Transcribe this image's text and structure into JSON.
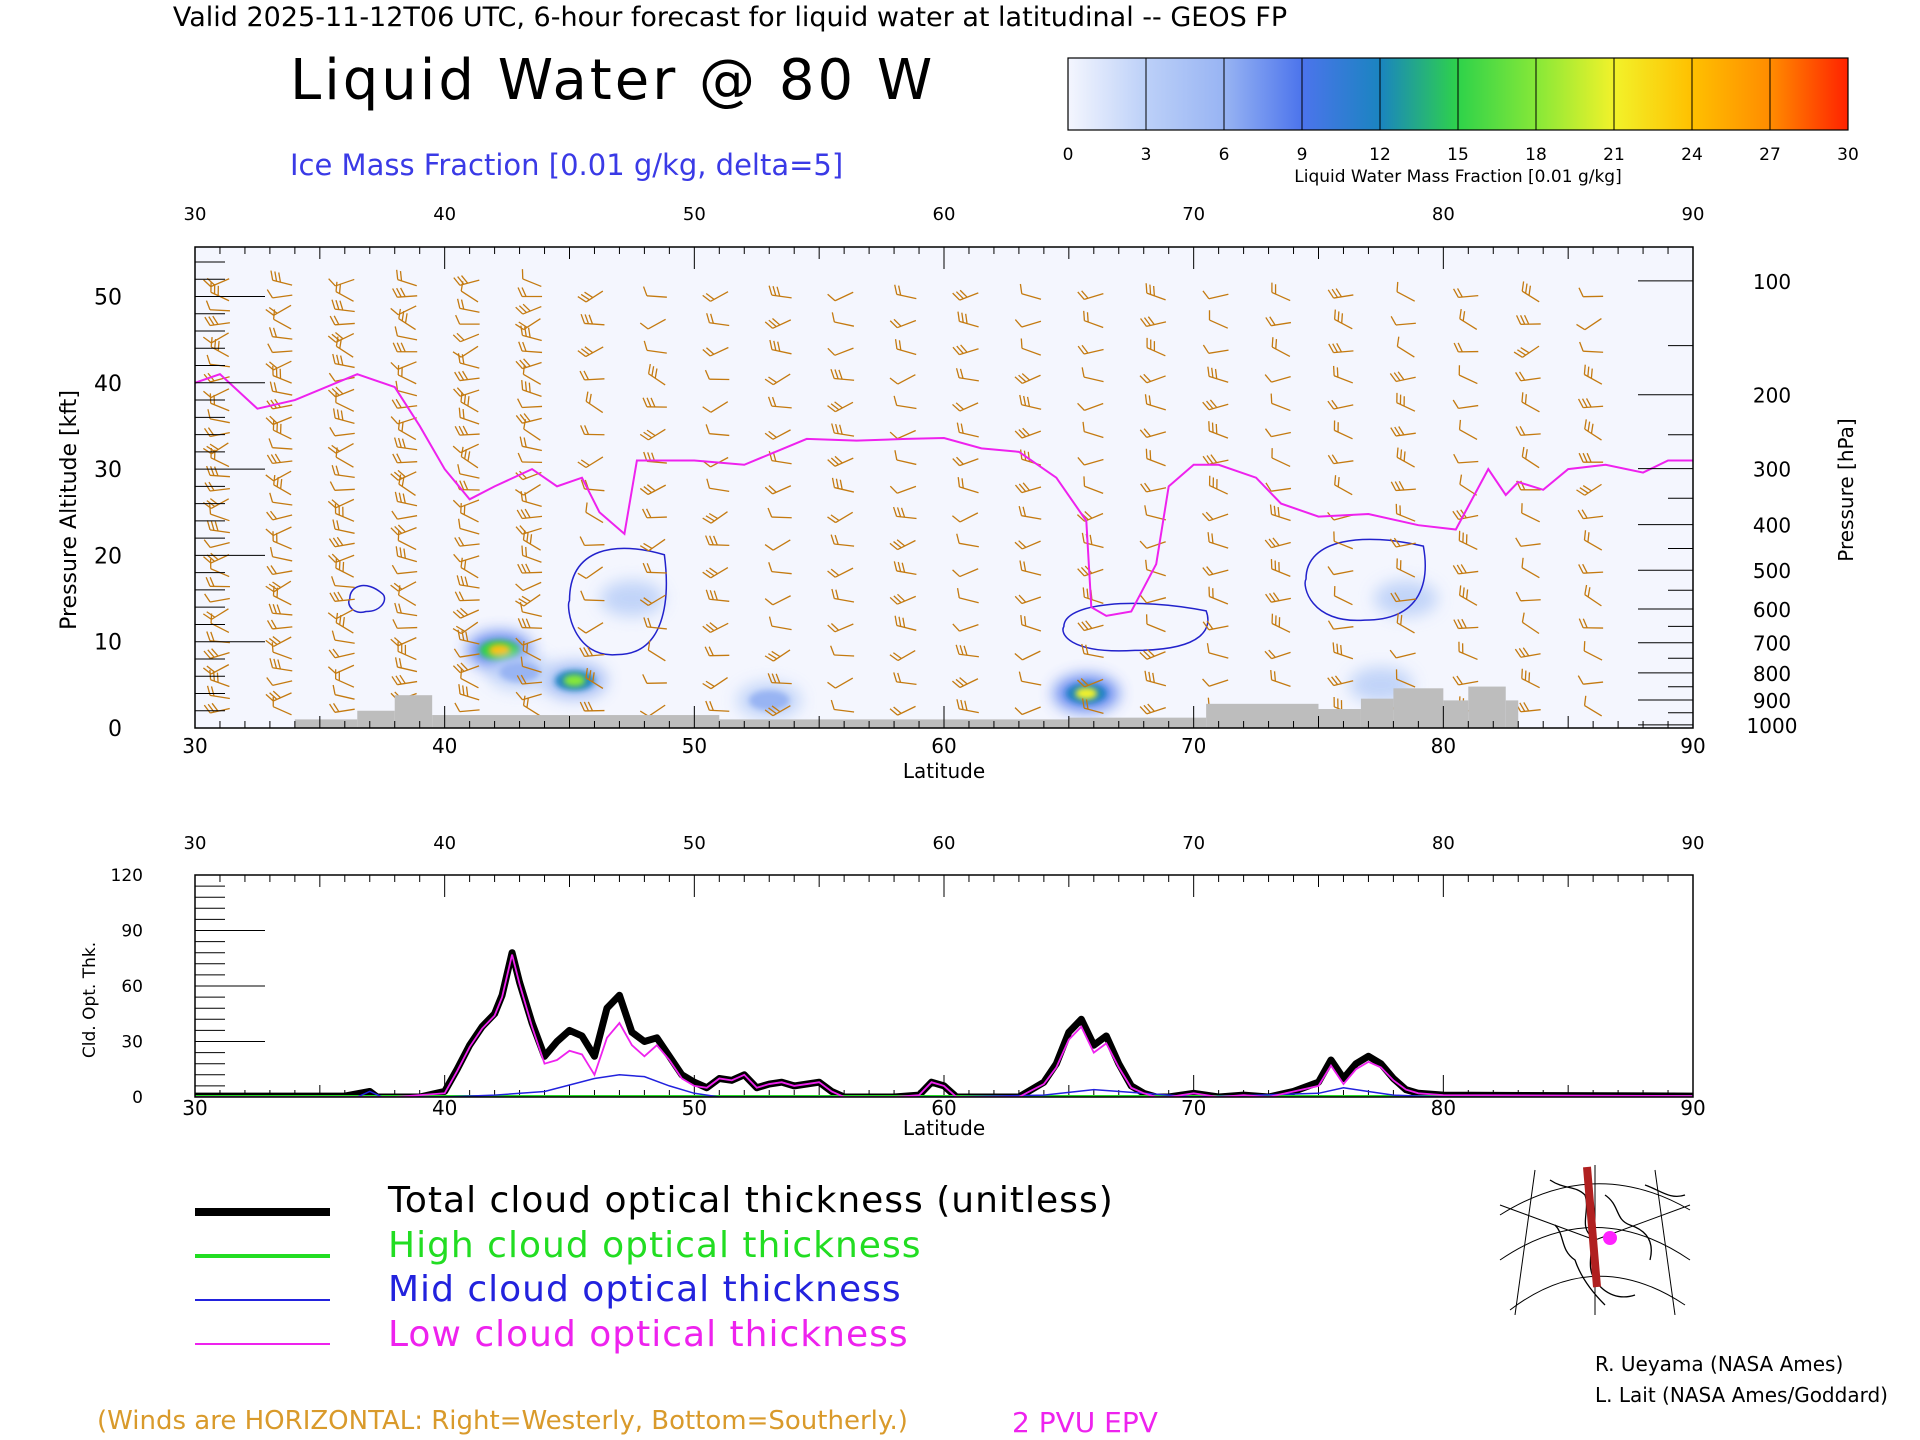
{
  "header": {
    "title": "Valid 2025-11-12T06 UTC, 6-hour forecast for liquid water at latitudinal -- GEOS FP",
    "main_title": "Liquid Water @ 80 W",
    "ice_label": "Ice Mass Fraction [0.01 g/kg, delta=5]"
  },
  "colorbar": {
    "ticks": [
      "0",
      "3",
      "6",
      "9",
      "12",
      "15",
      "18",
      "21",
      "24",
      "27",
      "30"
    ],
    "label": "Liquid Water Mass Fraction [0.01 g/kg]",
    "colors": [
      "#f4f6fe",
      "#bcd0f8",
      "#98b4f3",
      "#4c74ec",
      "#1a84c0",
      "#2ed24a",
      "#86e838",
      "#f2f22a",
      "#ffc000",
      "#ff8c00",
      "#ff2200"
    ]
  },
  "top_chart": {
    "top_ticks": [
      "30",
      "40",
      "50",
      "60",
      "70",
      "80",
      "90"
    ],
    "bottom_ticks": [
      "30",
      "40",
      "50",
      "60",
      "70",
      "80",
      "90"
    ],
    "left_ticks": [
      "50",
      "40",
      "30",
      "20",
      "10",
      "0"
    ],
    "right_ticks": [
      "100",
      "200",
      "300",
      "400",
      "500",
      "600",
      "700",
      "800",
      "900",
      "1000"
    ],
    "left_axis_label": "Pressure Altitude [kft]",
    "right_axis_label": "Pressure [hPa]",
    "x_axis_label": "Latitude"
  },
  "bottom_chart": {
    "top_ticks": [
      "30",
      "40",
      "50",
      "60",
      "70",
      "80",
      "90"
    ],
    "bottom_ticks": [
      "30",
      "40",
      "50",
      "60",
      "70",
      "80",
      "90"
    ],
    "left_ticks": [
      "120",
      "90",
      "60",
      "30",
      "0"
    ],
    "y_axis_label": "Cld. Opt. Thk.",
    "x_axis_label": "Latitude"
  },
  "legend": {
    "total": "Total cloud optical thickness (unitless)",
    "high": "High cloud optical thickness",
    "mid": "Mid cloud optical thickness",
    "low": "Low cloud optical thickness",
    "colors": {
      "total": "#000000",
      "high": "#22dd22",
      "mid": "#2222dd",
      "low": "#ee22ee"
    }
  },
  "credits": {
    "line1": "R. Ueyama (NASA Ames)",
    "line2": "L. Lait (NASA Ames/Goddard)"
  },
  "footer": {
    "winds_note": "(Winds are HORIZONTAL: Right=Westerly, Bottom=Southerly.)",
    "pvu_label": "2 PVU EPV"
  },
  "chart_data": [
    {
      "type": "heatmap",
      "title": "Liquid Water @ 80 W",
      "xlabel": "Latitude",
      "ylabel": "Pressure Altitude [kft]",
      "y2label": "Pressure [hPa]",
      "xlim": [
        30,
        90
      ],
      "ylim": [
        0,
        55
      ],
      "liquid_water_blobs": [
        {
          "lat": 42.2,
          "alt_kft": 9.0,
          "peak": 24
        },
        {
          "lat": 45.2,
          "alt_kft": 5.5,
          "peak": 18
        },
        {
          "lat": 43.0,
          "alt_kft": 6.5,
          "peak": 9
        },
        {
          "lat": 47.5,
          "alt_kft": 15,
          "peak": 4
        },
        {
          "lat": 65.7,
          "alt_kft": 4.0,
          "peak": 20
        },
        {
          "lat": 53.0,
          "alt_kft": 3.2,
          "peak": 10
        },
        {
          "lat": 77.5,
          "alt_kft": 5.0,
          "peak": 7
        },
        {
          "lat": 78.5,
          "alt_kft": 15,
          "peak": 3
        }
      ],
      "epv_2pvu_kft": [
        [
          30,
          40
        ],
        [
          31,
          41
        ],
        [
          32.5,
          37
        ],
        [
          34,
          38
        ],
        [
          36.5,
          41
        ],
        [
          38,
          39.5
        ],
        [
          39,
          35
        ],
        [
          40,
          30
        ],
        [
          41,
          26.5
        ],
        [
          42,
          28
        ],
        [
          43.5,
          30
        ],
        [
          44.5,
          28
        ],
        [
          45.5,
          29
        ],
        [
          46.2,
          25
        ],
        [
          47.2,
          22.5
        ],
        [
          47.7,
          31
        ],
        [
          50,
          31
        ],
        [
          52,
          30.5
        ],
        [
          54.5,
          33.5
        ],
        [
          56.5,
          33.3
        ],
        [
          58.5,
          33.5
        ],
        [
          60,
          33.6
        ],
        [
          61.5,
          32.4
        ],
        [
          63,
          32
        ],
        [
          64.5,
          29
        ],
        [
          65.7,
          24
        ],
        [
          65.9,
          14
        ],
        [
          66.5,
          13
        ],
        [
          67.5,
          13.5
        ],
        [
          68.5,
          19
        ],
        [
          69,
          28
        ],
        [
          70,
          30.5
        ],
        [
          71,
          30.5
        ],
        [
          72.5,
          29
        ],
        [
          73.5,
          26
        ],
        [
          75,
          24.5
        ],
        [
          77,
          24.8
        ],
        [
          79,
          23.5
        ],
        [
          80.5,
          23
        ],
        [
          81.8,
          30
        ],
        [
          82.5,
          27
        ],
        [
          83,
          28.5
        ],
        [
          84,
          27.6
        ],
        [
          85,
          30
        ],
        [
          86.5,
          30.5
        ],
        [
          88,
          29.6
        ],
        [
          89,
          31
        ],
        [
          90,
          31
        ]
      ],
      "ice_contours_kft": [
        {
          "lat_range": [
            36.2,
            37.5
          ],
          "alt_range": [
            13.5,
            16.5
          ]
        },
        {
          "lat_range": [
            45.0,
            48.8
          ],
          "alt_range": [
            8.5,
            21
          ]
        },
        {
          "lat_range": [
            64.8,
            70.5
          ],
          "alt_range": [
            9,
            14.5
          ]
        },
        {
          "lat_range": [
            74.5,
            79.2
          ],
          "alt_range": [
            12.5,
            22
          ]
        }
      ]
    },
    {
      "type": "line",
      "xlabel": "Latitude",
      "ylabel": "Cld. Opt. Thk.",
      "xlim": [
        30,
        90
      ],
      "ylim": [
        0,
        120
      ],
      "series": [
        {
          "name": "Total cloud optical thickness (unitless)",
          "x": [
            30,
            36,
            37,
            37.3,
            38,
            39,
            40,
            40.5,
            41,
            41.5,
            42,
            42.3,
            42.7,
            43,
            43.5,
            44,
            44.5,
            45,
            45.5,
            46,
            46.5,
            47,
            47.5,
            48,
            48.5,
            49,
            49.5,
            50,
            50.5,
            51,
            51.5,
            52,
            52.5,
            53,
            53.5,
            54,
            54.5,
            55,
            55.5,
            56,
            57,
            58,
            59,
            59.5,
            60,
            60.5,
            61,
            62,
            63,
            64,
            64.5,
            65,
            65.5,
            66,
            66.5,
            67,
            67.5,
            68,
            68.5,
            69,
            70,
            71,
            72,
            73,
            74,
            75,
            75.5,
            76,
            76.5,
            77,
            77.5,
            78,
            78.5,
            79,
            80,
            90
          ],
          "y": [
            0.5,
            0.5,
            3,
            0,
            0,
            0,
            3,
            15,
            28,
            38,
            45,
            55,
            78,
            62,
            40,
            22,
            30,
            36,
            33,
            22,
            48,
            55,
            35,
            30,
            32,
            22,
            12,
            8,
            5,
            10,
            9,
            12,
            5,
            7,
            8,
            6,
            7,
            8,
            3,
            0,
            0,
            0,
            1,
            8,
            6,
            0,
            0,
            0,
            0,
            8,
            18,
            35,
            42,
            28,
            33,
            18,
            6,
            2,
            0,
            0,
            2,
            0,
            1,
            0,
            3,
            8,
            20,
            10,
            18,
            22,
            18,
            10,
            4,
            2,
            1,
            0.5
          ]
        },
        {
          "name": "High cloud optical thickness",
          "x": [
            30,
            90
          ],
          "y": [
            0,
            0
          ]
        },
        {
          "name": "Mid cloud optical thickness",
          "x": [
            30,
            36.5,
            37,
            37.5,
            40,
            42,
            44,
            46,
            47,
            48,
            49,
            50,
            51,
            60,
            64,
            66,
            68,
            70,
            75,
            76,
            77,
            78,
            80,
            90
          ],
          "y": [
            0,
            0,
            3,
            0,
            0,
            1,
            3,
            10,
            12,
            11,
            6,
            2,
            0,
            0,
            1,
            4,
            2,
            0,
            2,
            5,
            3,
            1,
            0,
            0
          ]
        },
        {
          "name": "Low cloud optical thickness",
          "x": [
            30,
            36,
            37,
            38,
            40,
            40.5,
            41,
            41.5,
            42,
            42.3,
            42.7,
            43,
            43.5,
            44,
            44.5,
            45,
            45.5,
            46,
            46.5,
            47,
            47.5,
            48,
            48.5,
            49,
            49.5,
            50,
            50.5,
            51,
            51.5,
            52,
            52.5,
            53,
            53.5,
            54,
            54.5,
            55,
            55.5,
            56,
            57,
            58,
            59,
            59.5,
            60,
            60.5,
            61,
            62,
            63,
            64,
            64.5,
            65,
            65.5,
            66,
            66.5,
            67,
            67.5,
            68,
            68.5,
            69,
            70,
            71,
            72,
            73,
            74,
            75,
            75.5,
            76,
            76.5,
            77,
            77.5,
            78,
            78.5,
            79,
            80,
            90
          ],
          "y": [
            0,
            0,
            0,
            0,
            2,
            14,
            27,
            37,
            44,
            54,
            77,
            61,
            38,
            18,
            20,
            25,
            23,
            12,
            32,
            40,
            28,
            22,
            28,
            20,
            10,
            6,
            5,
            10,
            9,
            12,
            5,
            7,
            8,
            6,
            7,
            8,
            3,
            0,
            0,
            0,
            1,
            8,
            6,
            0,
            0,
            0,
            0,
            7,
            16,
            31,
            38,
            24,
            29,
            16,
            5,
            2,
            0,
            0,
            2,
            0,
            1,
            0,
            3,
            6,
            17,
            7,
            15,
            19,
            16,
            9,
            4,
            2,
            1,
            0.5
          ]
        }
      ]
    }
  ]
}
